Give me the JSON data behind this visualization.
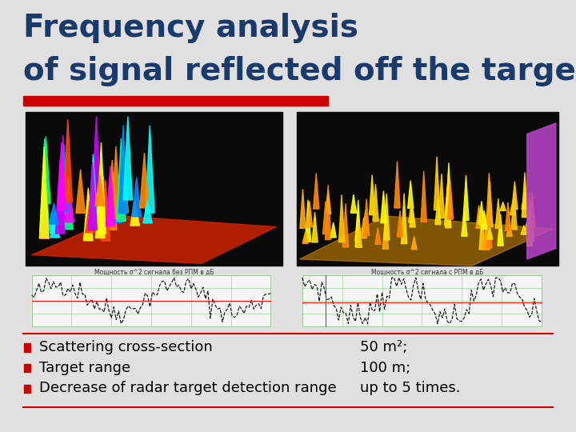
{
  "title_line1": "Frequency analysis",
  "title_line2": "of signal reflected off the target",
  "title_color": "#1a3a6b",
  "title_fontsize": 28,
  "title_bold": true,
  "red_bar_color": "#cc0000",
  "slide_bg": "#e0e0e0",
  "bullet_items": [
    [
      "Scattering cross-section",
      "50 m²;"
    ],
    [
      "Target range",
      "100 m;"
    ],
    [
      "Decrease of radar target detection range",
      "up to 5 times."
    ]
  ],
  "bullet_color": "#cc0000",
  "bullet_text_color": "#000000",
  "bullet_fontsize": 13,
  "separator_color": "#cc0000",
  "bottom_line_color": "#cc0000",
  "caption_left": "Мощность σ^2 сигнала без РПМ в дБ",
  "caption_right": "Мощность σ^2 сигнала с РПМ в дБ"
}
